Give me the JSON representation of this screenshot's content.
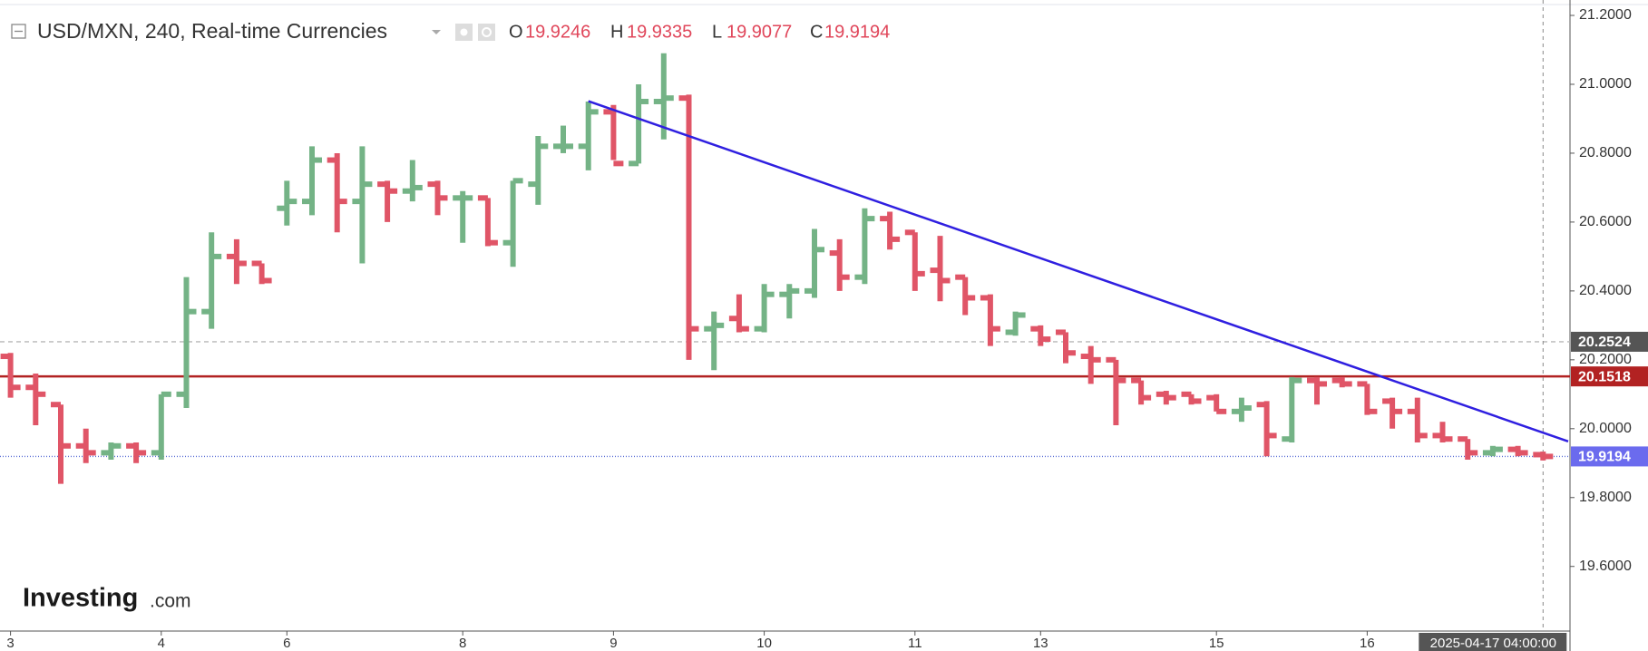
{
  "chart_data": {
    "type": "ohlc",
    "title": "USD/MXN, 240, Real-time Currencies",
    "ohlc_labels": [
      "O",
      "H",
      "L",
      "C"
    ],
    "header_values": [
      19.9246,
      19.9335,
      19.9077,
      19.9194
    ],
    "watermark": [
      "Investing",
      ".com"
    ],
    "crosshair_label": "2025-04-17 04:00:00",
    "categories": [
      "3",
      null,
      null,
      null,
      null,
      null,
      "4",
      null,
      null,
      null,
      null,
      "6",
      null,
      null,
      null,
      null,
      null,
      null,
      "8",
      null,
      null,
      null,
      null,
      null,
      "9",
      null,
      null,
      null,
      null,
      null,
      "10",
      null,
      null,
      null,
      null,
      null,
      "11",
      null,
      null,
      null,
      null,
      "13",
      null,
      null,
      null,
      null,
      null,
      null,
      "15",
      null,
      null,
      null,
      null,
      null,
      "16",
      null,
      null,
      null,
      null,
      null,
      null,
      null
    ],
    "open": [
      20.21,
      20.12,
      20.07,
      19.95,
      19.93,
      19.95,
      19.93,
      20.1,
      20.34,
      20.5,
      20.48,
      20.64,
      20.66,
      20.78,
      20.66,
      20.71,
      20.69,
      20.71,
      20.67,
      20.67,
      20.54,
      20.71,
      20.82,
      20.82,
      20.92,
      20.77,
      20.95,
      20.96,
      20.29,
      20.32,
      20.29,
      20.39,
      20.4,
      20.51,
      20.44,
      20.61,
      20.57,
      20.46,
      20.44,
      20.38,
      20.28,
      20.29,
      20.28,
      20.21,
      20.2,
      20.14,
      20.1,
      20.1,
      20.09,
      20.05,
      20.07,
      19.97,
      20.14,
      20.14,
      20.13,
      20.08,
      20.05,
      19.98,
      19.97,
      19.93,
      19.94,
      19.9246
    ],
    "high": [
      20.22,
      20.16,
      20.07,
      20.0,
      19.96,
      19.96,
      20.1,
      20.44,
      20.57,
      20.55,
      20.48,
      20.72,
      20.82,
      20.8,
      20.82,
      20.72,
      20.78,
      20.72,
      20.69,
      20.67,
      20.72,
      20.85,
      20.88,
      20.95,
      20.94,
      21.0,
      21.09,
      20.97,
      20.34,
      20.39,
      20.42,
      20.42,
      20.58,
      20.55,
      20.64,
      20.63,
      20.57,
      20.56,
      20.44,
      20.39,
      20.34,
      20.3,
      20.28,
      20.24,
      20.2,
      20.14,
      20.11,
      20.1,
      20.1,
      20.09,
      20.08,
      20.15,
      20.15,
      20.15,
      20.13,
      20.09,
      20.09,
      20.02,
      19.97,
      19.95,
      19.95,
      19.9335
    ],
    "low": [
      20.09,
      20.01,
      19.84,
      19.9,
      19.91,
      19.9,
      19.91,
      20.06,
      20.29,
      20.42,
      20.42,
      20.59,
      20.62,
      20.57,
      20.48,
      20.6,
      20.66,
      20.62,
      20.54,
      20.53,
      20.47,
      20.65,
      20.8,
      20.75,
      20.78,
      20.77,
      20.84,
      20.2,
      20.17,
      20.28,
      20.28,
      20.32,
      20.38,
      20.4,
      20.42,
      20.52,
      20.4,
      20.37,
      20.33,
      20.24,
      20.27,
      20.24,
      20.19,
      20.13,
      20.01,
      20.07,
      20.07,
      20.07,
      20.05,
      20.02,
      19.92,
      19.96,
      20.07,
      20.12,
      20.04,
      20.0,
      19.96,
      19.96,
      19.91,
      19.92,
      19.92,
      19.9077
    ],
    "close": [
      20.12,
      20.1,
      19.95,
      19.93,
      19.95,
      19.93,
      20.1,
      20.34,
      20.5,
      20.48,
      20.43,
      20.66,
      20.78,
      20.66,
      20.71,
      20.69,
      20.7,
      20.67,
      20.67,
      20.54,
      20.72,
      20.82,
      20.82,
      20.92,
      20.77,
      20.95,
      20.96,
      20.29,
      20.3,
      20.29,
      20.39,
      20.4,
      20.52,
      20.44,
      20.61,
      20.55,
      20.45,
      20.43,
      20.38,
      20.29,
      20.33,
      20.26,
      20.22,
      20.2,
      20.14,
      20.09,
      20.09,
      20.08,
      20.05,
      20.06,
      19.98,
      20.14,
      20.13,
      20.13,
      20.05,
      20.05,
      19.98,
      19.97,
      19.93,
      19.94,
      19.93,
      19.9194
    ],
    "up_color": "#74b386",
    "down_color": "#e05567",
    "ylim": [
      19.415,
      21.229
    ],
    "yticks": [
      {
        "value": 19.6,
        "label": "19.6000"
      },
      {
        "value": 19.8,
        "label": "19.8000"
      },
      {
        "value": 20.0,
        "label": "20.0000"
      },
      {
        "value": 20.2,
        "label": "20.2000"
      },
      {
        "value": 20.4,
        "label": "20.4000"
      },
      {
        "value": 20.6,
        "label": "20.6000"
      },
      {
        "value": 20.8,
        "label": "20.8000"
      },
      {
        "value": 21.0,
        "label": "21.0000"
      },
      {
        "value": 21.2,
        "label": "21.2000"
      }
    ],
    "grid": false,
    "levels": [
      {
        "value": 20.2524,
        "style": "dashed",
        "color": "#b8b8b8",
        "tag_color": "#555555"
      },
      {
        "value": 20.1518,
        "style": "solid",
        "color": "#b22222",
        "tag_color": "#b22222"
      },
      {
        "value": 19.9194,
        "style": "dotted",
        "color": "#5b6fd6",
        "tag_color": "#6b6bee"
      }
    ],
    "trendline": {
      "x": [
        23,
        62
      ],
      "y": [
        20.951,
        19.963
      ],
      "color": "#2f1fe0"
    }
  }
}
